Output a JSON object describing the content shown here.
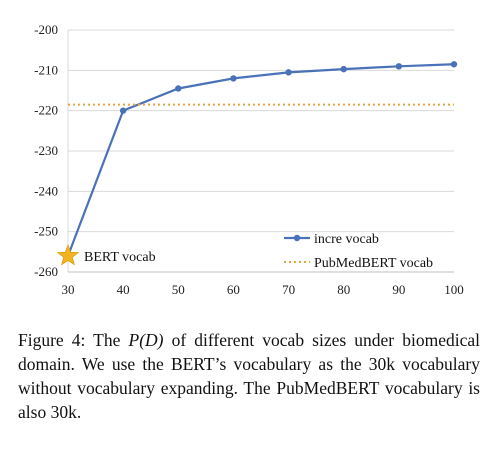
{
  "chart_data": {
    "type": "line",
    "x": [
      30,
      40,
      50,
      60,
      70,
      80,
      90,
      100
    ],
    "series": [
      {
        "name": "incre vocab",
        "values": [
          -256,
          -220,
          -214.5,
          -212,
          -210.5,
          -209.7,
          -209,
          -208.5
        ],
        "color": "#4a72b8",
        "style": "solid-marker"
      },
      {
        "name": "PubMedBERT vocab",
        "values": [
          -218.5,
          -218.5,
          -218.5,
          -218.5,
          -218.5,
          -218.5,
          -218.5,
          -218.5
        ],
        "color": "#e8a33d",
        "style": "dotted"
      }
    ],
    "xticks": [
      "30",
      "40",
      "50",
      "60",
      "70",
      "80",
      "90",
      "100"
    ],
    "yticks": [
      "-200",
      "-210",
      "-220",
      "-230",
      "-240",
      "-250",
      "-260"
    ],
    "xlim": [
      30,
      100
    ],
    "ylim": [
      -260,
      -200
    ],
    "grid": true,
    "legend_position": "bottom-right",
    "annotation": {
      "label": "BERT vocab",
      "x": 30,
      "y": -256,
      "marker": "star",
      "color": "#f2b320"
    }
  },
  "caption": {
    "prefix": "Figure 4:  The ",
    "math": "P(D)",
    "suffix": " of different vocab sizes under biomedical domain. We use the BERT’s vocabulary as the 30k vocabulary without vocabulary expanding. The PubMedBERT vocabulary is also 30k."
  }
}
